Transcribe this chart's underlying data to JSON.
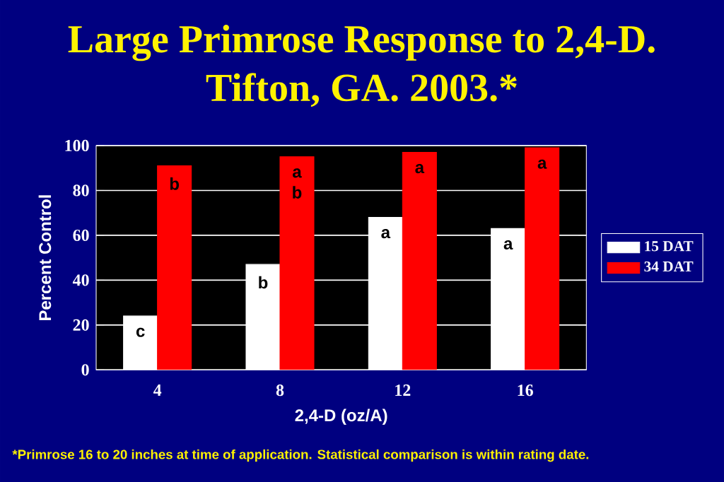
{
  "chart_data": {
    "type": "bar",
    "title": "Large Primrose Response to 2,4-D.",
    "subtitle": "Tifton, GA. 2003.*",
    "xlabel": "2,4-D (oz/A)",
    "ylabel": "Percent Control",
    "categories": [
      "4",
      "8",
      "12",
      "16"
    ],
    "series": [
      {
        "name": "15 DAT",
        "color": "#ffffff",
        "values": [
          24,
          47,
          68,
          63
        ],
        "value_labels": [
          "c",
          "b",
          "a",
          "a"
        ]
      },
      {
        "name": "34 DAT",
        "color": "#ff0000",
        "values": [
          91,
          95,
          97,
          99
        ],
        "value_labels": [
          "b",
          "a b",
          "a",
          "a"
        ]
      }
    ],
    "ylim": [
      0,
      100
    ],
    "yticks": [
      0,
      20,
      40,
      60,
      80,
      100
    ],
    "grid": "y",
    "legend": "right",
    "annotations": [
      "*Primrose 16 to 20 inches at time of application.  Statistical comparison is within rating date."
    ]
  }
}
